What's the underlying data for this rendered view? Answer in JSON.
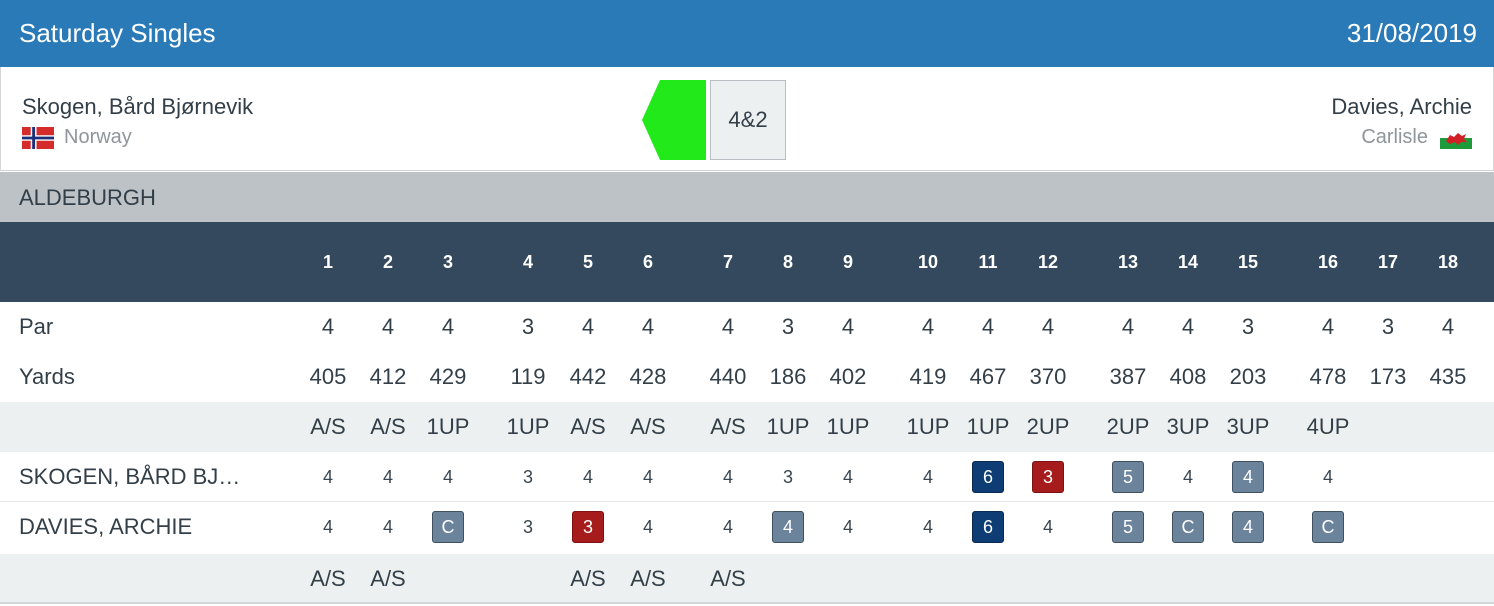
{
  "header": {
    "title": "Saturday Singles",
    "date": "31/08/2019"
  },
  "match": {
    "player1": {
      "name": "Skogen, Bård Bjørnevik",
      "club": "Norway",
      "flag": "norway-flag"
    },
    "player2": {
      "name": "Davies, Archie",
      "club": "Carlisle",
      "flag": "wales-flag"
    },
    "result": "4&2",
    "winner_color": "#22ea1a"
  },
  "course": {
    "name": "ALDEBURGH"
  },
  "holes": [
    "1",
    "2",
    "3",
    "4",
    "5",
    "6",
    "7",
    "8",
    "9",
    "10",
    "11",
    "12",
    "13",
    "14",
    "15",
    "16",
    "17",
    "18"
  ],
  "rows": {
    "par": {
      "label": "Par",
      "values": [
        "4",
        "4",
        "4",
        "3",
        "4",
        "4",
        "4",
        "3",
        "4",
        "4",
        "4",
        "4",
        "4",
        "4",
        "3",
        "4",
        "3",
        "4"
      ]
    },
    "yards": {
      "label": "Yards",
      "values": [
        "405",
        "412",
        "429",
        "119",
        "442",
        "428",
        "440",
        "186",
        "402",
        "419",
        "467",
        "370",
        "387",
        "408",
        "203",
        "478",
        "173",
        "435"
      ]
    },
    "status_p1": {
      "values": [
        "A/S",
        "A/S",
        "1UP",
        "1UP",
        "A/S",
        "A/S",
        "A/S",
        "1UP",
        "1UP",
        "1UP",
        "1UP",
        "2UP",
        "2UP",
        "3UP",
        "3UP",
        "4UP",
        "",
        ""
      ]
    },
    "score_p1": {
      "label": "SKOGEN, BÅRD BJ…",
      "values": [
        "4",
        "4",
        "4",
        "3",
        "4",
        "4",
        "4",
        "3",
        "4",
        "4",
        "6",
        "3",
        "5",
        "4",
        "4",
        "4",
        "",
        ""
      ],
      "styles": [
        "",
        "",
        "",
        "",
        "",
        "",
        "",
        "",
        "",
        "",
        "eagle",
        "birdie",
        "par-badge",
        "",
        "par-badge",
        "",
        "",
        ""
      ]
    },
    "score_p2": {
      "label": "DAVIES, ARCHIE",
      "values": [
        "4",
        "4",
        "C",
        "3",
        "3",
        "4",
        "4",
        "4",
        "4",
        "4",
        "6",
        "4",
        "5",
        "C",
        "4",
        "C",
        "",
        ""
      ],
      "styles": [
        "",
        "",
        "par-badge",
        "",
        "birdie",
        "",
        "",
        "par-badge",
        "",
        "",
        "eagle",
        "",
        "par-badge",
        "par-badge",
        "par-badge",
        "par-badge",
        "",
        ""
      ]
    },
    "status_p2": {
      "values": [
        "A/S",
        "A/S",
        "",
        "",
        "A/S",
        "A/S",
        "A/S",
        "",
        "",
        "",
        "",
        "",
        "",
        "",
        "",
        "",
        "",
        ""
      ]
    }
  },
  "colors": {
    "header_bg": "#2a7ab8",
    "holes_bg": "#34495e",
    "course_bg": "#bcc2c6"
  }
}
